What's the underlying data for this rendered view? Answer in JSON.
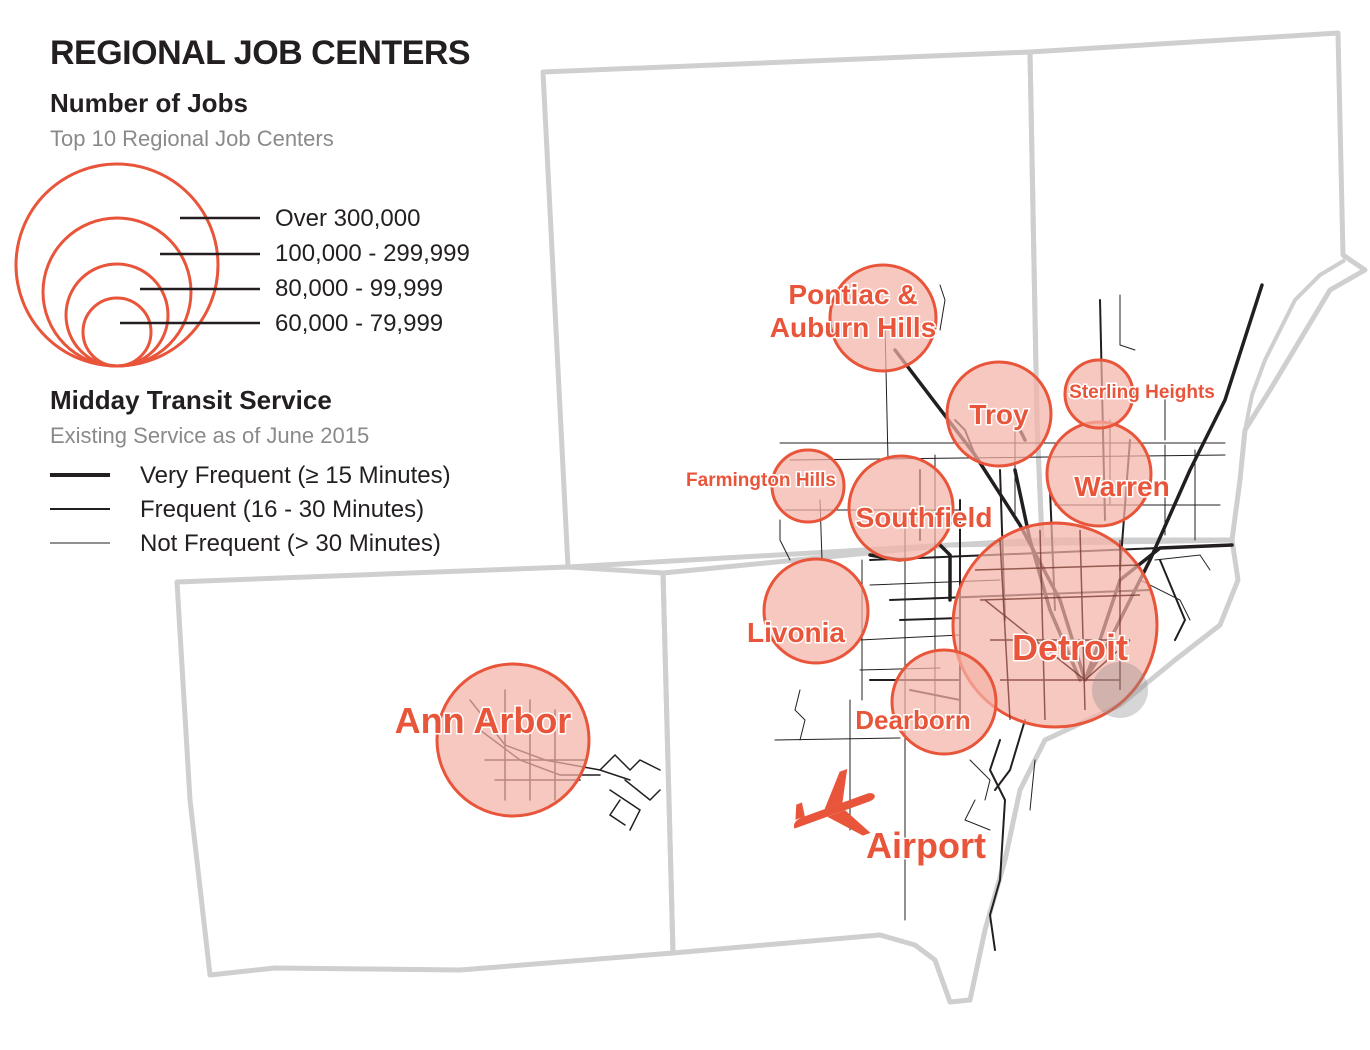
{
  "title": "REGIONAL JOB CENTERS",
  "jobs_legend": {
    "heading": "Number of Jobs",
    "subheading": "Top 10 Regional Job Centers",
    "items": [
      {
        "label": "Over 300,000"
      },
      {
        "label": "100,000 - 299,999"
      },
      {
        "label": "80,000 - 99,999"
      },
      {
        "label": "60,000 - 79,999"
      }
    ]
  },
  "transit_legend": {
    "heading": "Midday Transit Service",
    "subheading": "Existing Service as of June 2015",
    "items": [
      {
        "label": "Very Frequent (≥ 15 Minutes)"
      },
      {
        "label": "Frequent (16 - 30 Minutes)"
      },
      {
        "label": "Not Frequent (> 30 Minutes)"
      }
    ]
  },
  "job_centers": [
    {
      "name": "Detroit",
      "jobs_class": "Over 300,000"
    },
    {
      "name": "Ann Arbor",
      "jobs_class": "100,000 - 299,999"
    },
    {
      "name": "Southfield",
      "jobs_class": "80,000 - 99,999"
    },
    {
      "name": "Pontiac & Auburn Hills",
      "line1": "Pontiac &",
      "line2": "Auburn Hills",
      "jobs_class": "80,000 - 99,999"
    },
    {
      "name": "Troy",
      "jobs_class": "80,000 - 99,999"
    },
    {
      "name": "Warren",
      "jobs_class": "80,000 - 99,999"
    },
    {
      "name": "Livonia",
      "jobs_class": "80,000 - 99,999"
    },
    {
      "name": "Dearborn",
      "jobs_class": "80,000 - 99,999"
    },
    {
      "name": "Sterling Heights",
      "jobs_class": "60,000 - 79,999"
    },
    {
      "name": "Farmington Hills",
      "jobs_class": "60,000 - 79,999"
    }
  ],
  "airport": {
    "label": "Airport",
    "icon": "airplane-icon"
  },
  "colors": {
    "accent": "#e8553a",
    "circle_fill": "#f4b3a6",
    "county_border": "#cfcfcf",
    "transit": "#231f20"
  }
}
